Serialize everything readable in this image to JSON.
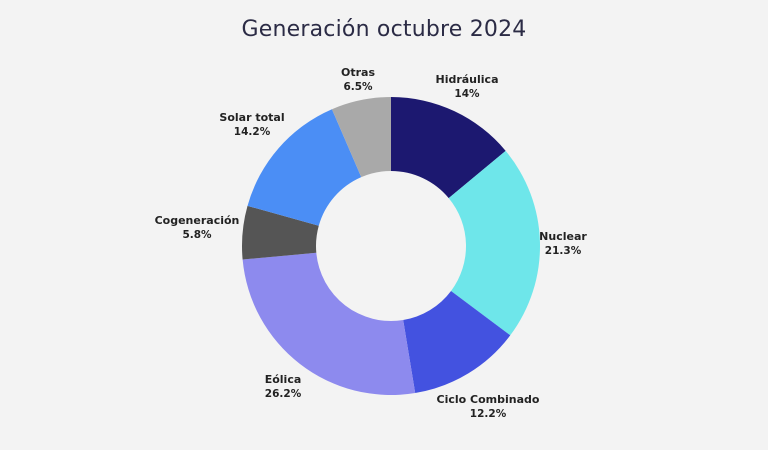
{
  "chart_data": {
    "type": "pie",
    "title": "Generación octubre 2024",
    "categories": [
      "Hidráulica",
      "Nuclear",
      "Ciclo Combinado",
      "Eólica",
      "Cogeneración",
      "Solar total",
      "Otras"
    ],
    "values": [
      14,
      21.3,
      12.2,
      26.2,
      5.8,
      14.2,
      6.5
    ],
    "value_labels": [
      "14%",
      "21.3%",
      "12.2%",
      "26.2%",
      "5.8%",
      "14.2%",
      "6.5%"
    ],
    "colors": [
      "#1c1870",
      "#6ee6ea",
      "#4352e0",
      "#8d8aee",
      "#555555",
      "#4b8ef5",
      "#a9a9a9"
    ],
    "donut": true,
    "legend": "none"
  }
}
